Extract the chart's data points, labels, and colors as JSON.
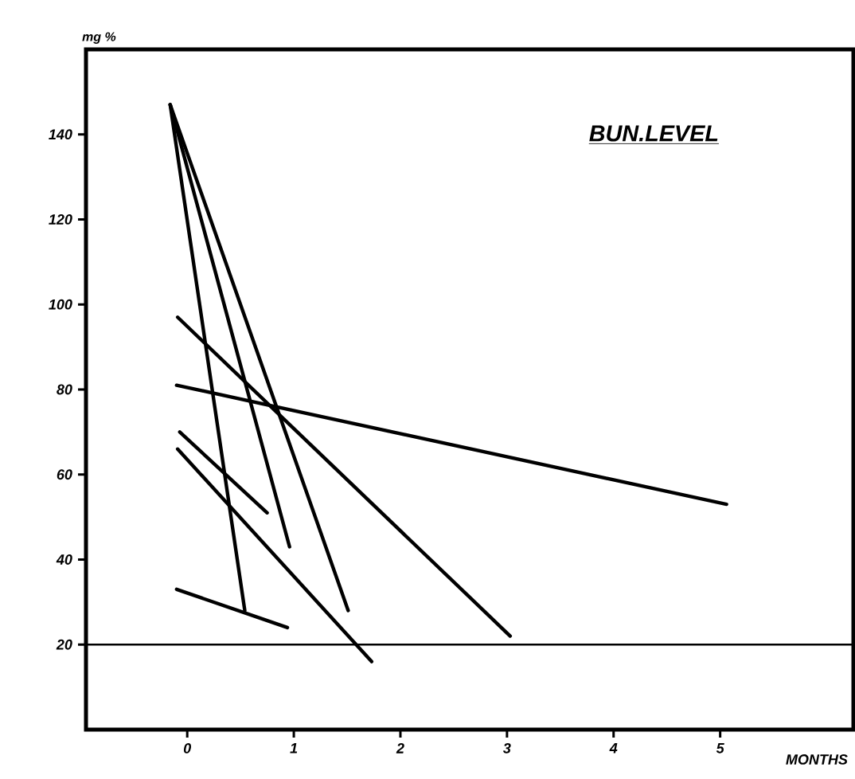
{
  "chart_data": {
    "type": "line",
    "title": "BUN.LEVEL",
    "xlabel": "MONTHS",
    "ylabel": "mg %",
    "xlim": [
      -0.95,
      6.25
    ],
    "ylim": [
      0,
      160
    ],
    "xticks": [
      0,
      1,
      2,
      3,
      4,
      5
    ],
    "yticks": [
      20,
      40,
      60,
      80,
      100,
      120,
      140
    ],
    "series": [
      {
        "color": "#000000",
        "x": [
          -0.16,
          0.54
        ],
        "values": [
          147,
          28
        ]
      },
      {
        "color": "#000000",
        "x": [
          -0.16,
          0.96
        ],
        "values": [
          147,
          43
        ]
      },
      {
        "color": "#000000",
        "x": [
          -0.16,
          1.51
        ],
        "values": [
          147,
          28
        ]
      },
      {
        "color": "#000000",
        "x": [
          -0.09,
          3.03
        ],
        "values": [
          97,
          22
        ]
      },
      {
        "color": "#000000",
        "x": [
          -0.1,
          5.06
        ],
        "values": [
          81,
          53
        ]
      },
      {
        "color": "#000000",
        "x": [
          -0.07,
          0.75
        ],
        "values": [
          70,
          51
        ]
      },
      {
        "color": "#000000",
        "x": [
          -0.09,
          1.73
        ],
        "values": [
          66,
          16
        ]
      },
      {
        "color": "#000000",
        "x": [
          -0.1,
          0.94
        ],
        "values": [
          33,
          24
        ]
      }
    ],
    "ref_lines": [
      {
        "axis": "y",
        "value": 20,
        "color": "#000000"
      }
    ]
  }
}
